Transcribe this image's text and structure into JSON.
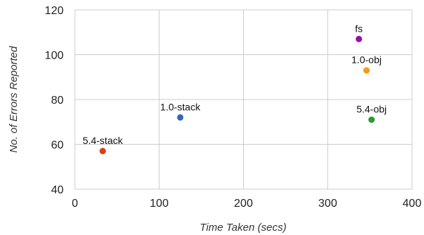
{
  "chart_data": {
    "type": "scatter",
    "title": "",
    "xlabel": "Time Taken (secs)",
    "ylabel": "No. of Errors Reported",
    "xlim": [
      0,
      400
    ],
    "ylim": [
      40,
      120
    ],
    "x_ticks": [
      0,
      100,
      200,
      300,
      400
    ],
    "y_ticks": [
      40,
      60,
      80,
      100,
      120
    ],
    "grid": true,
    "legend": "none",
    "points": [
      {
        "label": "fs",
        "x": 337,
        "y": 107,
        "color": "#9c0ca8"
      },
      {
        "label": "1.0-obj",
        "x": 346,
        "y": 93,
        "color": "#f59a14"
      },
      {
        "label": "5.4-obj",
        "x": 352,
        "y": 71,
        "color": "#2b9a33"
      },
      {
        "label": "1.0-stack",
        "x": 125,
        "y": 72,
        "color": "#2f67bd"
      },
      {
        "label": "5.4-stack",
        "x": 33,
        "y": 57,
        "color": "#e33b12"
      }
    ]
  }
}
